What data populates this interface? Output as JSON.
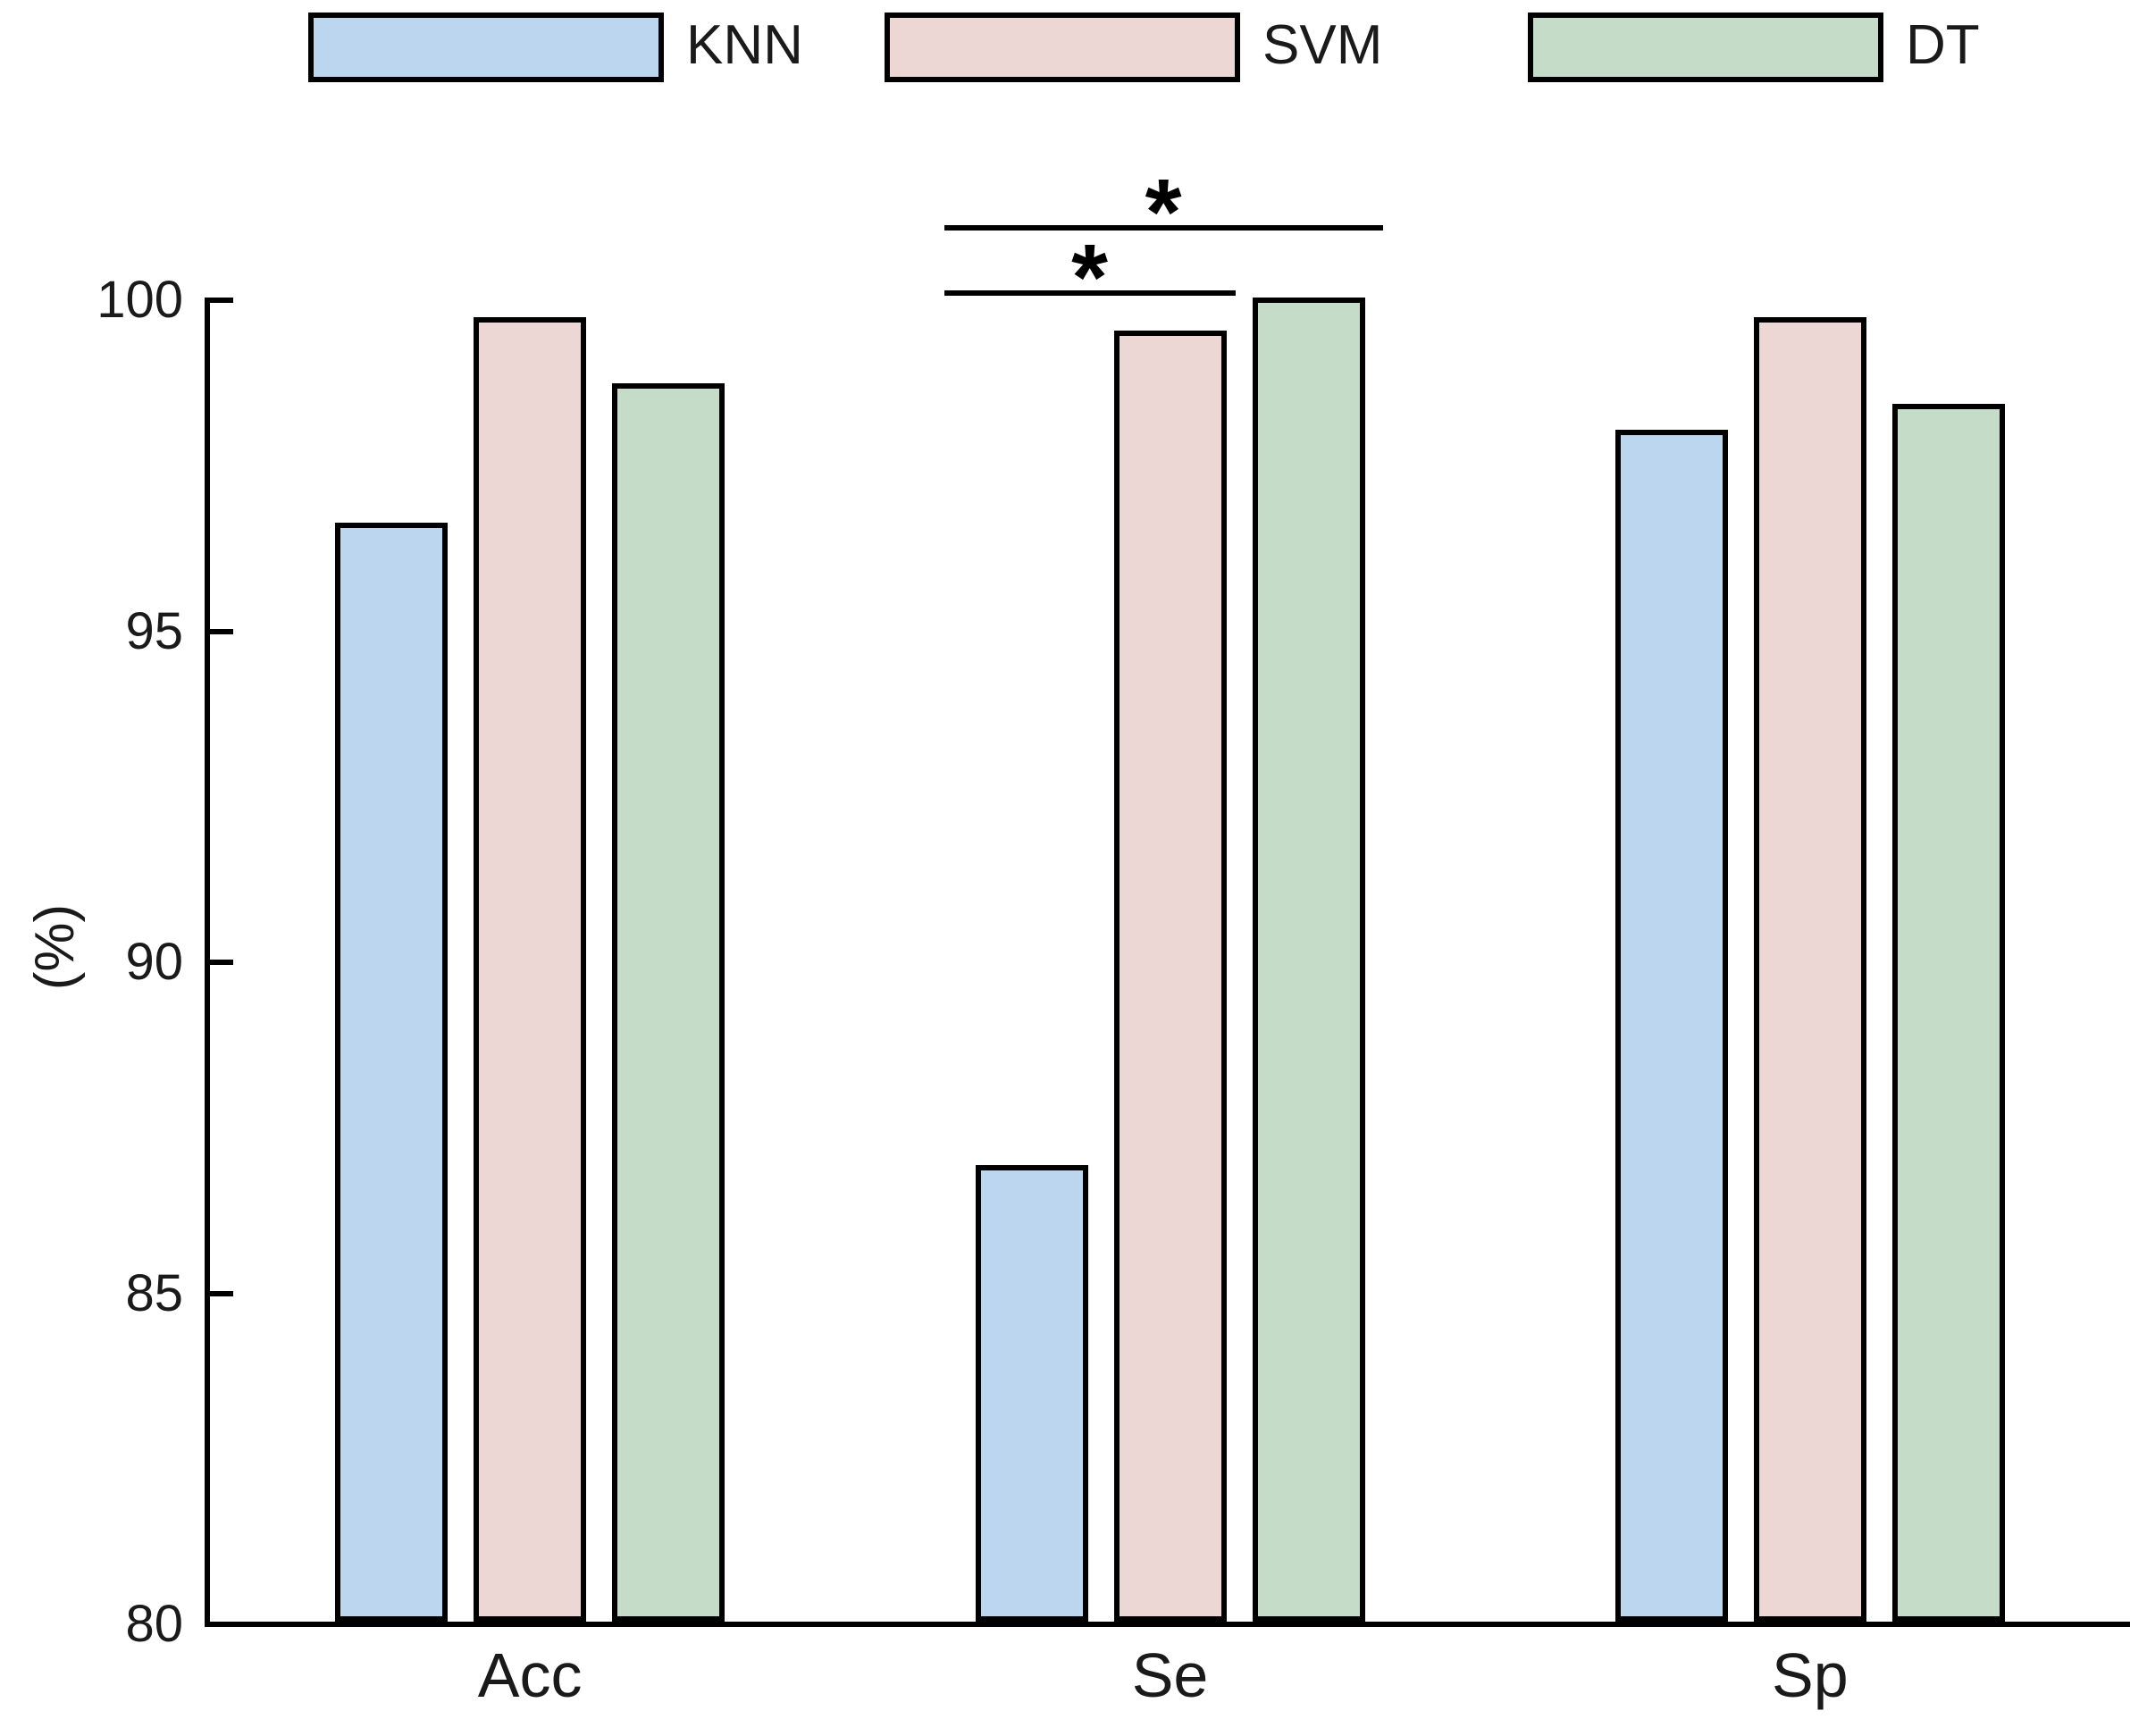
{
  "chart_data": {
    "type": "bar",
    "title": "",
    "ylabel": "(%)",
    "xlabel": "",
    "ylim": [
      80,
      100
    ],
    "yticks": [
      80,
      85,
      90,
      95,
      100
    ],
    "categories": [
      "Acc",
      "Se",
      "Sp"
    ],
    "series": [
      {
        "name": "KNN",
        "color": "#BDD6EF",
        "values": [
          96.6,
          86.9,
          98.0
        ]
      },
      {
        "name": "SVM",
        "color": "#ECD7D5",
        "values": [
          99.7,
          99.5,
          99.7
        ]
      },
      {
        "name": "DT",
        "color": "#C4DCC8",
        "values": [
          98.7,
          100.0,
          98.4
        ]
      }
    ],
    "bar_edge_color": "#000000",
    "axis_color": "#000000",
    "grid": false,
    "legend_position": "top",
    "significance": [
      {
        "group": "Se",
        "from": "KNN",
        "to": "SVM",
        "label": "*"
      },
      {
        "group": "Se",
        "from": "KNN",
        "to": "DT",
        "label": "*"
      }
    ]
  }
}
